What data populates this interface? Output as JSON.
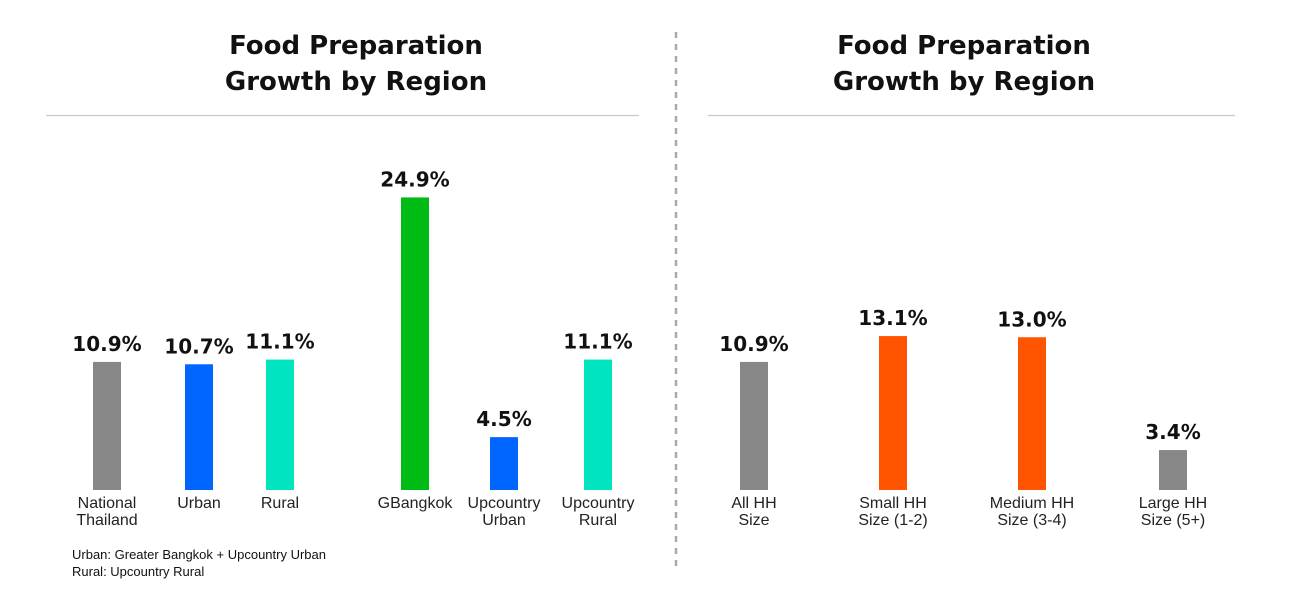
{
  "chart_data": [
    {
      "type": "bar",
      "title_lines": [
        "Food Preparation",
        "Growth by Region"
      ],
      "xlabel": "",
      "ylabel": "",
      "categories": [
        [
          "National",
          "Thailand"
        ],
        [
          "Urban"
        ],
        [
          "Rural"
        ],
        [
          "GBangkok"
        ],
        [
          "Upcountry",
          "Urban"
        ],
        [
          "Upcountry",
          "Rural"
        ]
      ],
      "values": [
        10.9,
        10.7,
        11.1,
        24.9,
        4.5,
        11.1
      ],
      "value_labels": [
        "10.9%",
        "10.7%",
        "11.1%",
        "24.9%",
        "4.5%",
        "11.1%"
      ],
      "colors": [
        "#878787",
        "#0066ff",
        "#00e5c0",
        "#00bb13",
        "#0066ff",
        "#00e5c0"
      ],
      "grid": false,
      "legend": "none",
      "footnotes": [
        "Urban: Greater Bangkok + Upcountry Urban",
        "Rural: Upcountry Rural"
      ]
    },
    {
      "type": "bar",
      "title_lines": [
        "Food Preparation",
        "Growth by Region"
      ],
      "xlabel": "",
      "ylabel": "",
      "categories": [
        [
          "All HH",
          "Size"
        ],
        [
          "Small HH",
          "Size (1-2)"
        ],
        [
          "Medium HH",
          "Size (3-4)"
        ],
        [
          "Large HH",
          "Size (5+)"
        ]
      ],
      "values": [
        10.9,
        13.1,
        13.0,
        3.4
      ],
      "value_labels": [
        "10.9%",
        "13.1%",
        "13.0%",
        "3.4%"
      ],
      "colors": [
        "#878787",
        "#ff5400",
        "#ff5400",
        "#878787"
      ],
      "grid": false,
      "legend": "none"
    }
  ]
}
